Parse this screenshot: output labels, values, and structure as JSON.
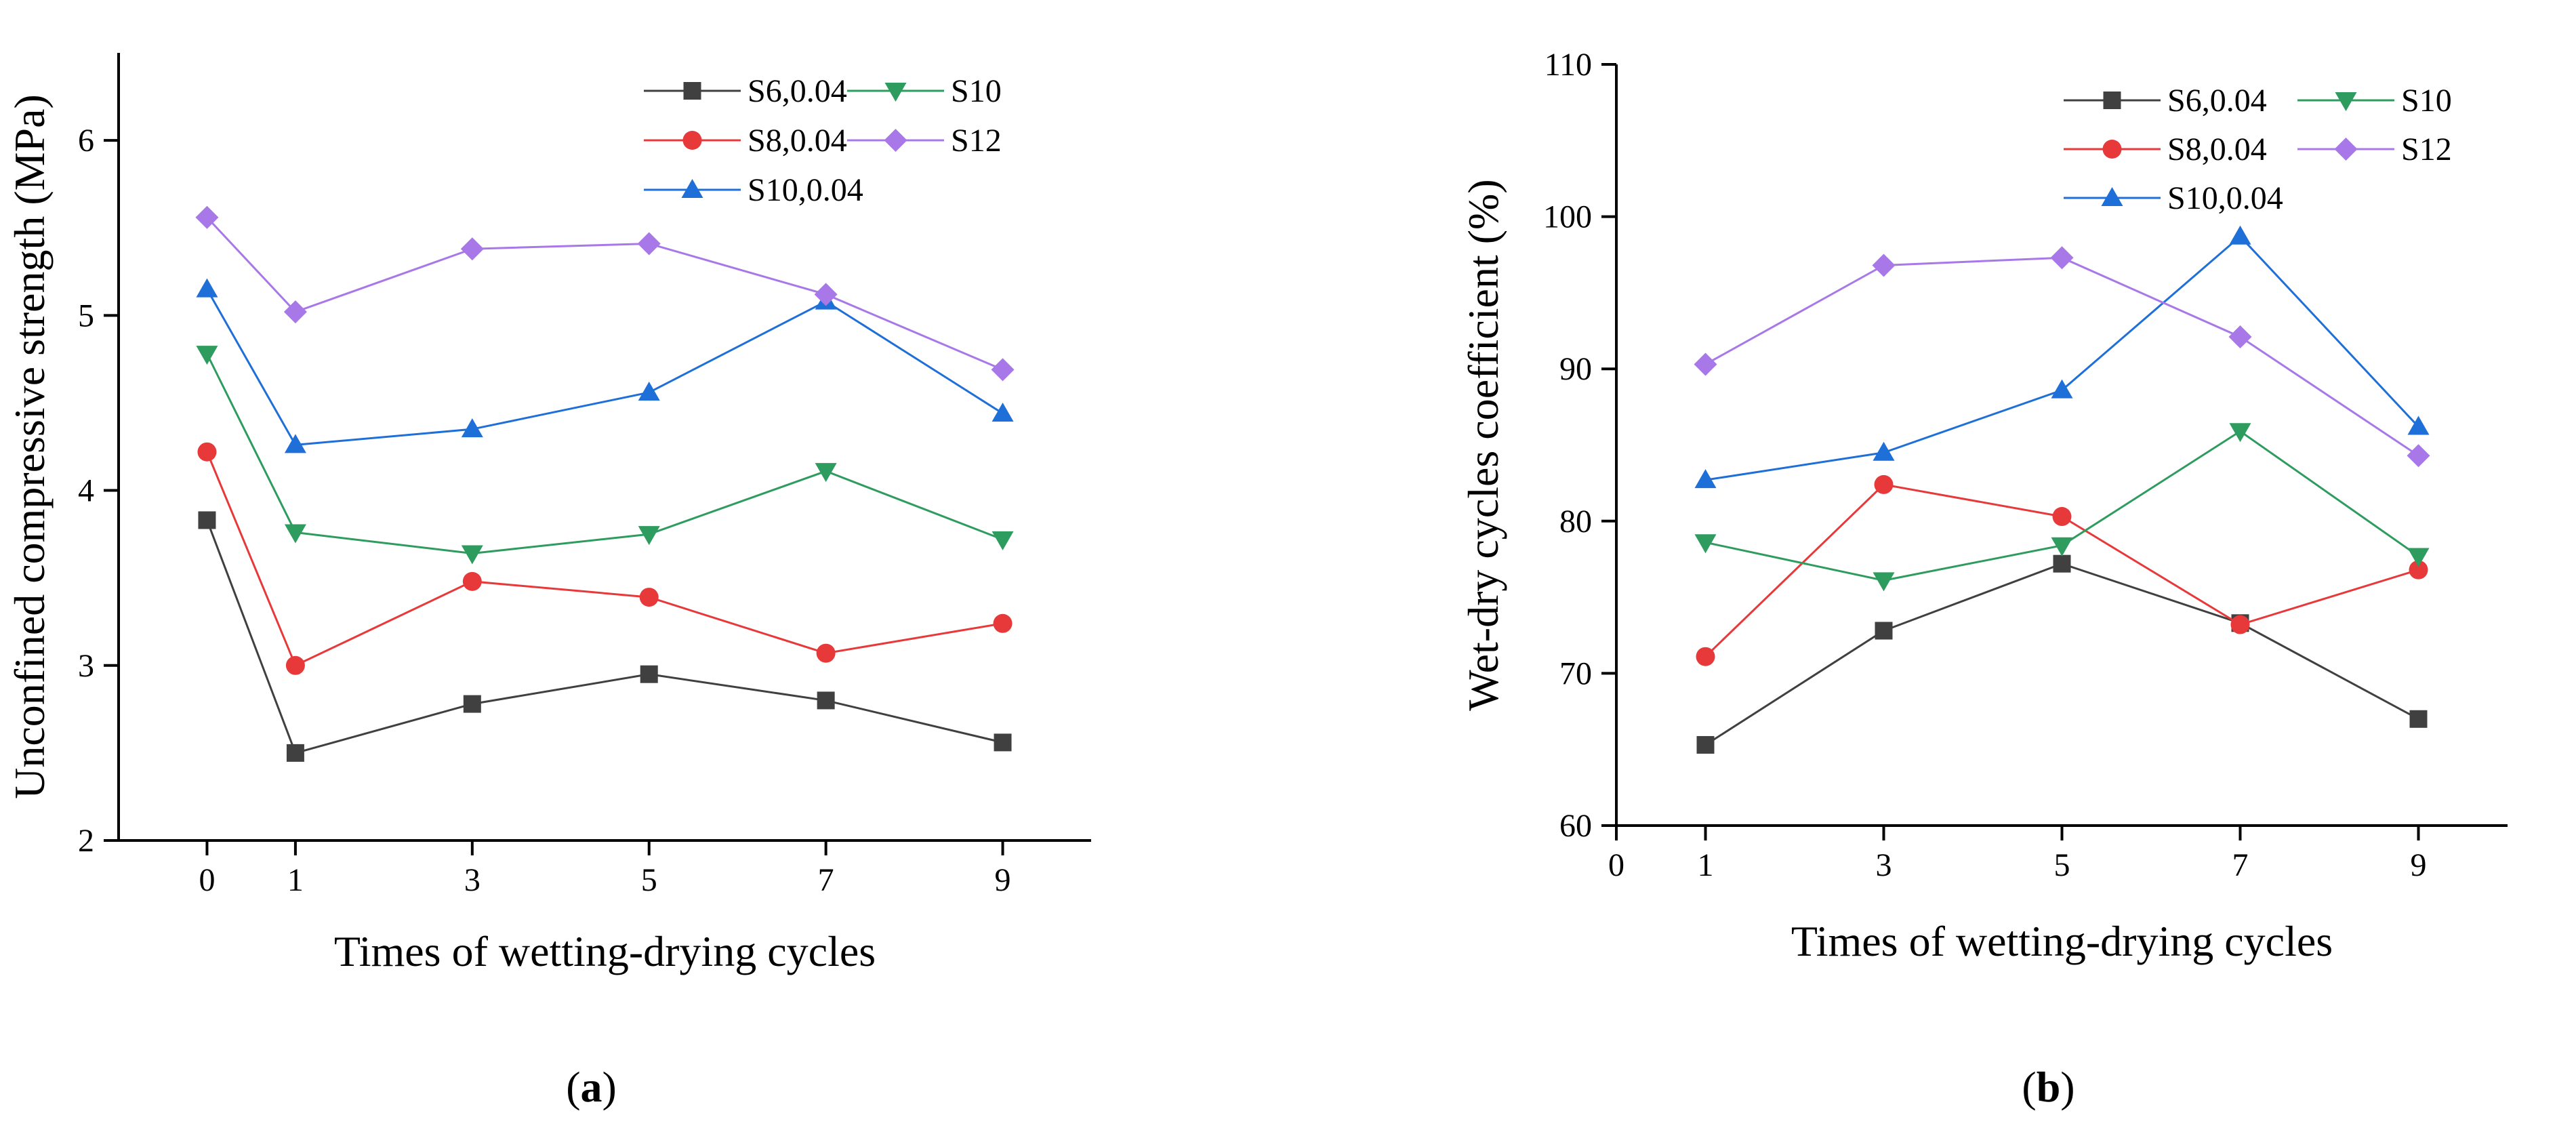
{
  "chart_data": [
    {
      "type": "line",
      "panel_label": "a",
      "xlabel": "Times of wetting-drying cycles",
      "ylabel": "Unconfined compressive strength (MPa)",
      "xlim": [
        -1,
        10
      ],
      "ylim": [
        2,
        6.5
      ],
      "xticks": [
        0,
        1,
        3,
        5,
        7,
        9
      ],
      "yticks": [
        2,
        3,
        4,
        5,
        6
      ],
      "legend_position": "top-right",
      "series": [
        {
          "name": "S6,0.04",
          "color": "#404040",
          "marker": "square",
          "x": [
            0,
            1,
            3,
            5,
            7,
            9
          ],
          "values": [
            3.83,
            2.5,
            2.78,
            2.95,
            2.8,
            2.56
          ]
        },
        {
          "name": "S8,0.04",
          "color": "#e8393a",
          "marker": "circle",
          "x": [
            0,
            1,
            3,
            5,
            7,
            9
          ],
          "values": [
            4.22,
            3.0,
            3.48,
            3.39,
            3.07,
            3.24
          ]
        },
        {
          "name": "S10,0.04",
          "color": "#1f6fd8",
          "marker": "triangle-up",
          "x": [
            0,
            1,
            3,
            5,
            7,
            9
          ],
          "values": [
            5.15,
            4.26,
            4.35,
            4.56,
            5.08,
            4.44
          ]
        },
        {
          "name": "S10",
          "color": "#2e9c5e",
          "marker": "triangle-down",
          "x": [
            0,
            1,
            3,
            5,
            7,
            9
          ],
          "values": [
            4.78,
            3.76,
            3.64,
            3.75,
            4.11,
            3.72
          ]
        },
        {
          "name": "S12",
          "color": "#a878e8",
          "marker": "diamond",
          "x": [
            0,
            1,
            3,
            5,
            7,
            9
          ],
          "values": [
            5.56,
            5.02,
            5.38,
            5.41,
            5.12,
            4.69
          ]
        }
      ]
    },
    {
      "type": "line",
      "panel_label": "b",
      "xlabel": "Times of wetting-drying cycles",
      "ylabel": "Wet-dry cycles coefficient (%)",
      "xlim": [
        0,
        10
      ],
      "ylim": [
        60,
        110
      ],
      "xticks": [
        0,
        1,
        3,
        5,
        7,
        9
      ],
      "yticks": [
        60,
        70,
        80,
        90,
        100,
        110
      ],
      "legend_position": "top-right",
      "series": [
        {
          "name": "S6,0.04",
          "color": "#404040",
          "marker": "square",
          "x": [
            1,
            3,
            5,
            7,
            9
          ],
          "values": [
            65.3,
            72.8,
            77.2,
            73.3,
            67.0
          ]
        },
        {
          "name": "S8,0.04",
          "color": "#e8393a",
          "marker": "circle",
          "x": [
            1,
            3,
            5,
            7,
            9
          ],
          "values": [
            71.1,
            82.4,
            80.3,
            73.2,
            76.8
          ]
        },
        {
          "name": "S10,0.04",
          "color": "#1f6fd8",
          "marker": "triangle-up",
          "x": [
            1,
            3,
            5,
            7,
            9
          ],
          "values": [
            82.7,
            84.5,
            88.6,
            98.7,
            86.2
          ]
        },
        {
          "name": "S10",
          "color": "#2e9c5e",
          "marker": "triangle-down",
          "x": [
            1,
            3,
            5,
            7,
            9
          ],
          "values": [
            78.6,
            76.1,
            78.4,
            85.9,
            77.7
          ]
        },
        {
          "name": "S12",
          "color": "#a878e8",
          "marker": "diamond",
          "x": [
            1,
            3,
            5,
            7,
            9
          ],
          "values": [
            90.3,
            96.8,
            97.3,
            92.1,
            84.3
          ]
        }
      ]
    }
  ]
}
